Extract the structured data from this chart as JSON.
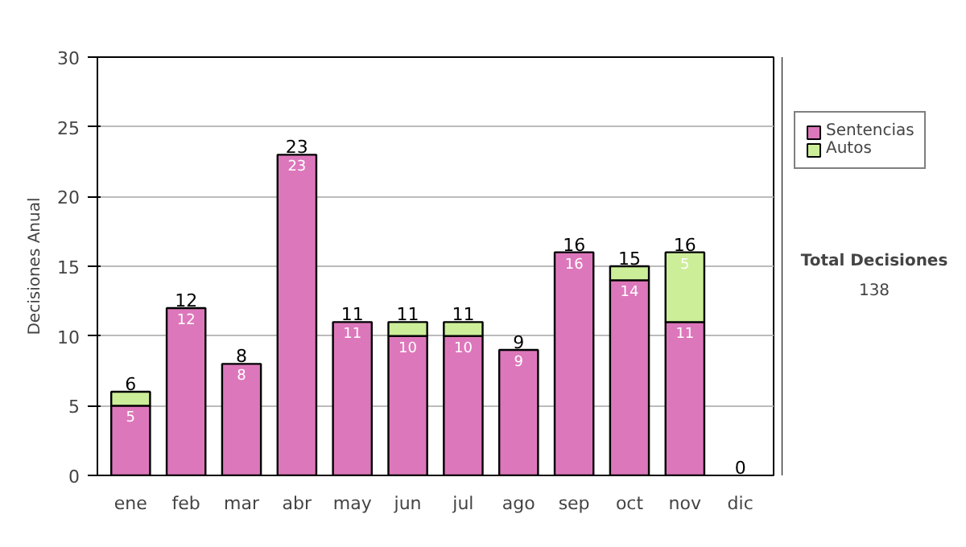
{
  "chart_data": {
    "type": "bar",
    "stacked": true,
    "ylabel": "Decisiones Anual",
    "categories": [
      "ene",
      "feb",
      "mar",
      "abr",
      "may",
      "jun",
      "jul",
      "ago",
      "sep",
      "oct",
      "nov",
      "dic"
    ],
    "series": [
      {
        "name": "Sentencias",
        "color": "#dd77bb",
        "values": [
          5,
          12,
          8,
          23,
          11,
          10,
          10,
          9,
          16,
          14,
          11,
          0
        ],
        "value_labels": [
          "5",
          "12",
          "8",
          "23",
          "11",
          "10",
          "10",
          "9",
          "16",
          "14",
          "11",
          null
        ]
      },
      {
        "name": "Autos",
        "color": "#ccee99",
        "values": [
          1,
          0,
          0,
          0,
          0,
          1,
          1,
          0,
          0,
          1,
          5,
          0
        ],
        "value_labels": [
          null,
          null,
          null,
          null,
          null,
          null,
          null,
          null,
          null,
          null,
          "5",
          null
        ]
      }
    ],
    "totals": [
      "6",
      "12",
      "8",
      "23",
      "11",
      "11",
      "11",
      "9",
      "16",
      "15",
      "16",
      "0"
    ],
    "ylim": [
      0,
      30
    ],
    "yticks": [
      0,
      5,
      10,
      15,
      20,
      25,
      30
    ],
    "grid": "y",
    "legend": "right",
    "annotations": [
      "Total Decisiones",
      "138"
    ]
  }
}
